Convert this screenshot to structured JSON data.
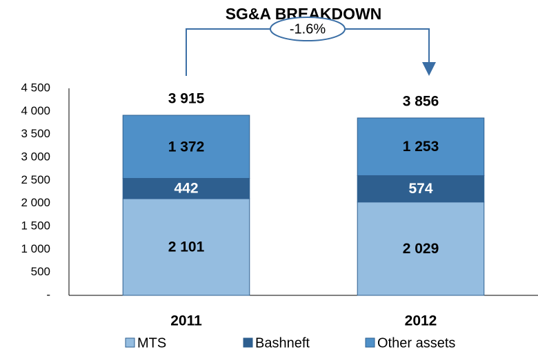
{
  "chart_data": {
    "type": "stacked_bar",
    "title": "SG&A BREAKDOWN",
    "annotation": "-1.6%",
    "categories": [
      "2011",
      "2012"
    ],
    "series": [
      {
        "name": "MTS",
        "color": "#95bde0",
        "values": [
          2101,
          2029
        ],
        "value_labels": [
          "2 101",
          "2 029"
        ]
      },
      {
        "name": "Bashneft",
        "color": "#2e5f8f",
        "values": [
          442,
          574
        ],
        "value_labels": [
          "442",
          "574"
        ]
      },
      {
        "name": "Other assets",
        "color": "#4f90c8",
        "values": [
          1372,
          1253
        ],
        "value_labels": [
          "1 372",
          "1 253"
        ]
      }
    ],
    "totals": [
      3915,
      3856
    ],
    "total_labels": [
      "3 915",
      "3 856"
    ],
    "ylim": [
      0,
      4500
    ],
    "yticks": [
      {
        "value": 0,
        "label": "-"
      },
      500,
      {
        "value": 1000,
        "label": "1 000"
      },
      {
        "value": 1500,
        "label": "1 500"
      },
      {
        "value": 2000,
        "label": "2 000"
      },
      {
        "value": 2500,
        "label": "2 500"
      },
      {
        "value": 3000,
        "label": "3 000"
      },
      {
        "value": 3500,
        "label": "3 500"
      },
      {
        "value": 4000,
        "label": "4 000"
      },
      {
        "value": 4500,
        "label": "4 500"
      }
    ],
    "grid": false
  }
}
